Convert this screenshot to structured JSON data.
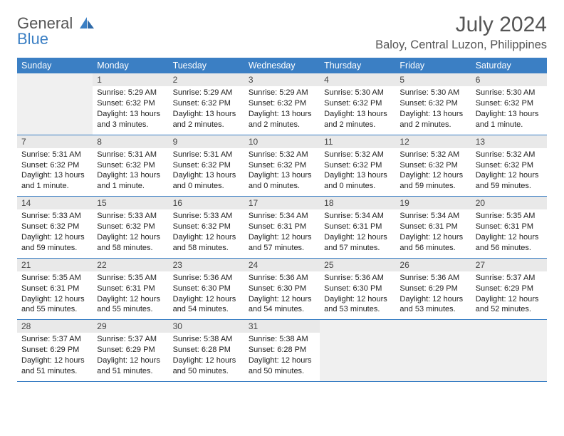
{
  "brand": {
    "line1": "General",
    "line2": "Blue"
  },
  "title": "July 2024",
  "location": "Baloy, Central Luzon, Philippines",
  "colors": {
    "accent": "#3b7fc4",
    "header_text": "#ffffff",
    "daynum_bg": "#e9e9e9",
    "empty_bg": "#f0f0f0",
    "body_text": "#333333",
    "page_bg": "#ffffff",
    "border": "#3b7fc4"
  },
  "fonts": {
    "month_title_size": 30,
    "location_size": 16.5,
    "day_header_size": 12.5,
    "daynum_size": 12,
    "cell_size": 11
  },
  "day_names": [
    "Sunday",
    "Monday",
    "Tuesday",
    "Wednesday",
    "Thursday",
    "Friday",
    "Saturday"
  ],
  "weeks": [
    [
      {
        "empty": true
      },
      {
        "n": "1",
        "sunrise": "Sunrise: 5:29 AM",
        "sunset": "Sunset: 6:32 PM",
        "daylight": "Daylight: 13 hours and 3 minutes."
      },
      {
        "n": "2",
        "sunrise": "Sunrise: 5:29 AM",
        "sunset": "Sunset: 6:32 PM",
        "daylight": "Daylight: 13 hours and 2 minutes."
      },
      {
        "n": "3",
        "sunrise": "Sunrise: 5:29 AM",
        "sunset": "Sunset: 6:32 PM",
        "daylight": "Daylight: 13 hours and 2 minutes."
      },
      {
        "n": "4",
        "sunrise": "Sunrise: 5:30 AM",
        "sunset": "Sunset: 6:32 PM",
        "daylight": "Daylight: 13 hours and 2 minutes."
      },
      {
        "n": "5",
        "sunrise": "Sunrise: 5:30 AM",
        "sunset": "Sunset: 6:32 PM",
        "daylight": "Daylight: 13 hours and 2 minutes."
      },
      {
        "n": "6",
        "sunrise": "Sunrise: 5:30 AM",
        "sunset": "Sunset: 6:32 PM",
        "daylight": "Daylight: 13 hours and 1 minute."
      }
    ],
    [
      {
        "n": "7",
        "sunrise": "Sunrise: 5:31 AM",
        "sunset": "Sunset: 6:32 PM",
        "daylight": "Daylight: 13 hours and 1 minute."
      },
      {
        "n": "8",
        "sunrise": "Sunrise: 5:31 AM",
        "sunset": "Sunset: 6:32 PM",
        "daylight": "Daylight: 13 hours and 1 minute."
      },
      {
        "n": "9",
        "sunrise": "Sunrise: 5:31 AM",
        "sunset": "Sunset: 6:32 PM",
        "daylight": "Daylight: 13 hours and 0 minutes."
      },
      {
        "n": "10",
        "sunrise": "Sunrise: 5:32 AM",
        "sunset": "Sunset: 6:32 PM",
        "daylight": "Daylight: 13 hours and 0 minutes."
      },
      {
        "n": "11",
        "sunrise": "Sunrise: 5:32 AM",
        "sunset": "Sunset: 6:32 PM",
        "daylight": "Daylight: 13 hours and 0 minutes."
      },
      {
        "n": "12",
        "sunrise": "Sunrise: 5:32 AM",
        "sunset": "Sunset: 6:32 PM",
        "daylight": "Daylight: 12 hours and 59 minutes."
      },
      {
        "n": "13",
        "sunrise": "Sunrise: 5:32 AM",
        "sunset": "Sunset: 6:32 PM",
        "daylight": "Daylight: 12 hours and 59 minutes."
      }
    ],
    [
      {
        "n": "14",
        "sunrise": "Sunrise: 5:33 AM",
        "sunset": "Sunset: 6:32 PM",
        "daylight": "Daylight: 12 hours and 59 minutes."
      },
      {
        "n": "15",
        "sunrise": "Sunrise: 5:33 AM",
        "sunset": "Sunset: 6:32 PM",
        "daylight": "Daylight: 12 hours and 58 minutes."
      },
      {
        "n": "16",
        "sunrise": "Sunrise: 5:33 AM",
        "sunset": "Sunset: 6:32 PM",
        "daylight": "Daylight: 12 hours and 58 minutes."
      },
      {
        "n": "17",
        "sunrise": "Sunrise: 5:34 AM",
        "sunset": "Sunset: 6:31 PM",
        "daylight": "Daylight: 12 hours and 57 minutes."
      },
      {
        "n": "18",
        "sunrise": "Sunrise: 5:34 AM",
        "sunset": "Sunset: 6:31 PM",
        "daylight": "Daylight: 12 hours and 57 minutes."
      },
      {
        "n": "19",
        "sunrise": "Sunrise: 5:34 AM",
        "sunset": "Sunset: 6:31 PM",
        "daylight": "Daylight: 12 hours and 56 minutes."
      },
      {
        "n": "20",
        "sunrise": "Sunrise: 5:35 AM",
        "sunset": "Sunset: 6:31 PM",
        "daylight": "Daylight: 12 hours and 56 minutes."
      }
    ],
    [
      {
        "n": "21",
        "sunrise": "Sunrise: 5:35 AM",
        "sunset": "Sunset: 6:31 PM",
        "daylight": "Daylight: 12 hours and 55 minutes."
      },
      {
        "n": "22",
        "sunrise": "Sunrise: 5:35 AM",
        "sunset": "Sunset: 6:31 PM",
        "daylight": "Daylight: 12 hours and 55 minutes."
      },
      {
        "n": "23",
        "sunrise": "Sunrise: 5:36 AM",
        "sunset": "Sunset: 6:30 PM",
        "daylight": "Daylight: 12 hours and 54 minutes."
      },
      {
        "n": "24",
        "sunrise": "Sunrise: 5:36 AM",
        "sunset": "Sunset: 6:30 PM",
        "daylight": "Daylight: 12 hours and 54 minutes."
      },
      {
        "n": "25",
        "sunrise": "Sunrise: 5:36 AM",
        "sunset": "Sunset: 6:30 PM",
        "daylight": "Daylight: 12 hours and 53 minutes."
      },
      {
        "n": "26",
        "sunrise": "Sunrise: 5:36 AM",
        "sunset": "Sunset: 6:29 PM",
        "daylight": "Daylight: 12 hours and 53 minutes."
      },
      {
        "n": "27",
        "sunrise": "Sunrise: 5:37 AM",
        "sunset": "Sunset: 6:29 PM",
        "daylight": "Daylight: 12 hours and 52 minutes."
      }
    ],
    [
      {
        "n": "28",
        "sunrise": "Sunrise: 5:37 AM",
        "sunset": "Sunset: 6:29 PM",
        "daylight": "Daylight: 12 hours and 51 minutes."
      },
      {
        "n": "29",
        "sunrise": "Sunrise: 5:37 AM",
        "sunset": "Sunset: 6:29 PM",
        "daylight": "Daylight: 12 hours and 51 minutes."
      },
      {
        "n": "30",
        "sunrise": "Sunrise: 5:38 AM",
        "sunset": "Sunset: 6:28 PM",
        "daylight": "Daylight: 12 hours and 50 minutes."
      },
      {
        "n": "31",
        "sunrise": "Sunrise: 5:38 AM",
        "sunset": "Sunset: 6:28 PM",
        "daylight": "Daylight: 12 hours and 50 minutes."
      },
      {
        "empty": true
      },
      {
        "empty": true
      },
      {
        "empty": true
      }
    ]
  ]
}
